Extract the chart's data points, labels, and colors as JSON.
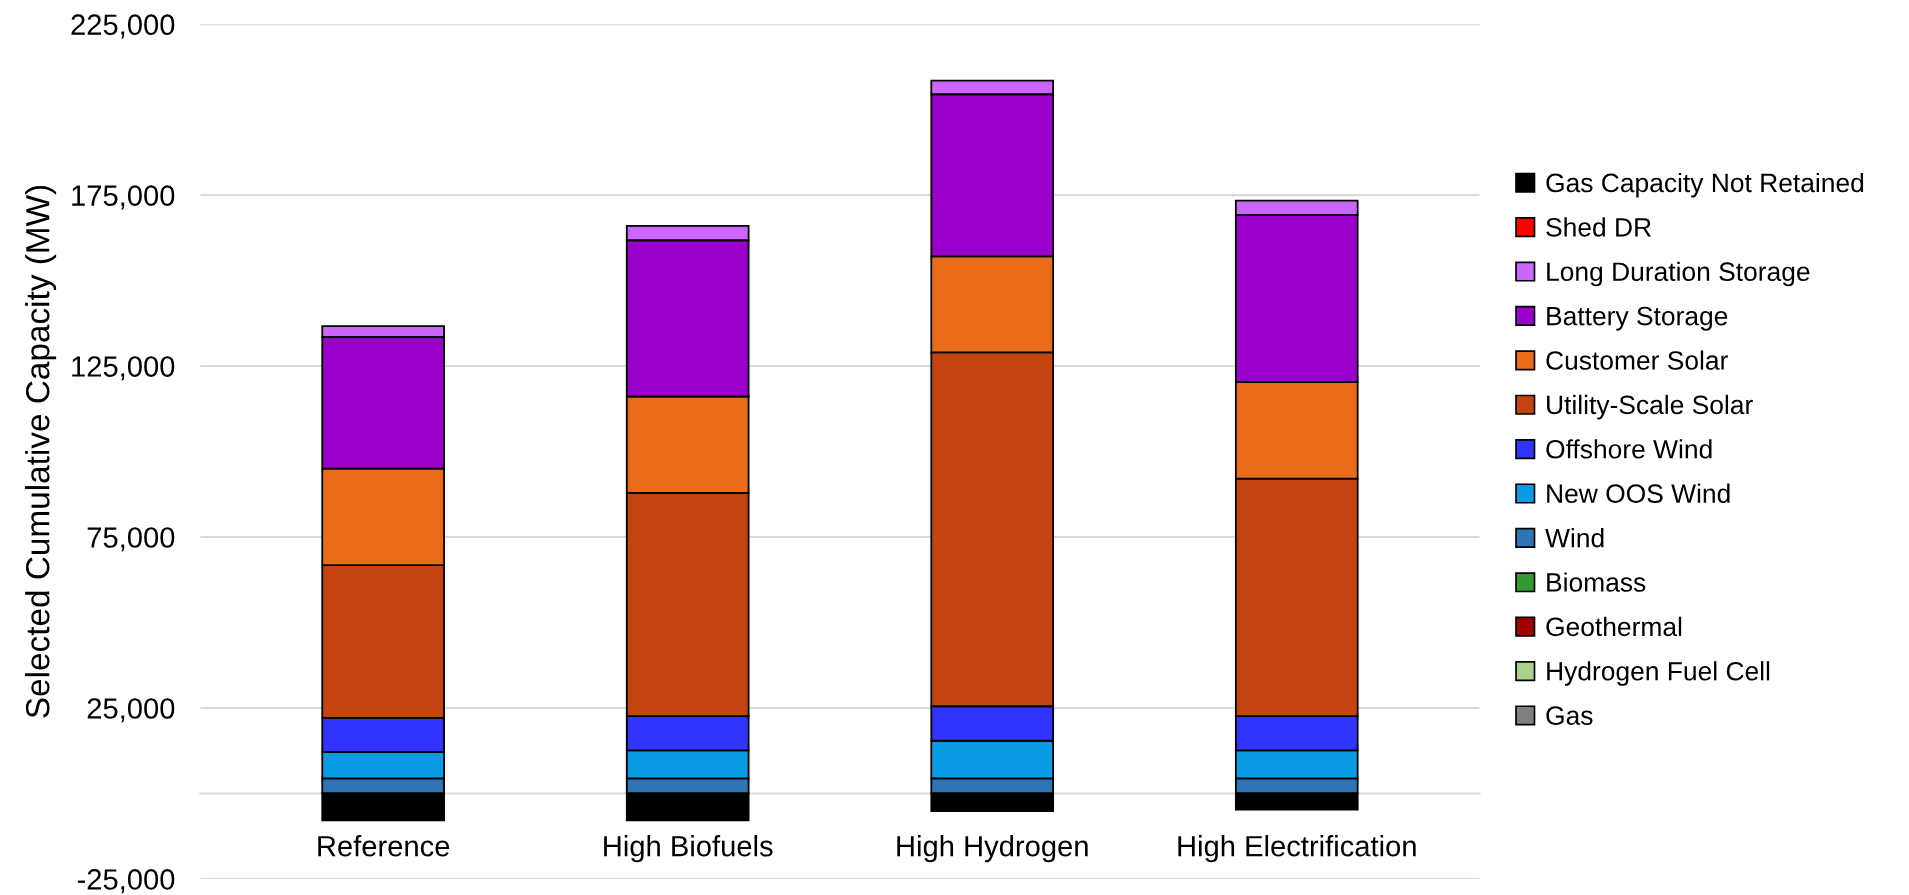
{
  "chart_data": {
    "type": "bar",
    "stacked": true,
    "ylabel": "Selected Cumulative Capacity (MW)",
    "categories": [
      "Reference",
      "High Biofuels",
      "High Hydrogen",
      "High Electrification"
    ],
    "ylim": [
      -25000,
      225000
    ],
    "yticks": [
      {
        "value": -25000,
        "label": "-25,000"
      },
      {
        "value": 25000,
        "label": "25,000"
      },
      {
        "value": 75000,
        "label": "75,000"
      },
      {
        "value": 125000,
        "label": "125,000"
      },
      {
        "value": 175000,
        "label": "175,000"
      },
      {
        "value": 225000,
        "label": "225,000"
      }
    ],
    "grid": "y",
    "legend": "right",
    "series": [
      {
        "name": "Gas",
        "color": "#808080",
        "values": [
          0,
          0,
          0,
          0
        ]
      },
      {
        "name": "Hydrogen Fuel Cell",
        "color": "#a9d18e",
        "values": [
          0,
          0,
          0,
          0
        ]
      },
      {
        "name": "Geothermal",
        "color": "#a00000",
        "values": [
          0,
          0,
          0,
          0
        ]
      },
      {
        "name": "Biomass",
        "color": "#339933",
        "values": [
          0,
          0,
          0,
          0
        ]
      },
      {
        "name": "Wind",
        "color": "#2e75b6",
        "values": [
          4400,
          4400,
          4400,
          4400
        ]
      },
      {
        "name": "New OOS Wind",
        "color": "#0a9be3",
        "values": [
          7700,
          8200,
          11000,
          8200
        ]
      },
      {
        "name": "Offshore Wind",
        "color": "#3333ff",
        "values": [
          10000,
          10000,
          10100,
          10000
        ]
      },
      {
        "name": "Utility-Scale Solar",
        "color": "#c44410",
        "values": [
          44700,
          65300,
          103500,
          69500
        ]
      },
      {
        "name": "Customer Solar",
        "color": "#eb6c18",
        "values": [
          28200,
          28200,
          28100,
          28200
        ]
      },
      {
        "name": "Battery Storage",
        "color": "#9900cc",
        "values": [
          38500,
          45700,
          47400,
          48900
        ]
      },
      {
        "name": "Long Duration Storage",
        "color": "#cc66ff",
        "values": [
          3200,
          4200,
          4000,
          4200
        ]
      },
      {
        "name": "Shed DR",
        "color": "#ff0000",
        "values": [
          0,
          0,
          0,
          0
        ]
      },
      {
        "name": "Gas Capacity Not Retained",
        "color": "#000000",
        "values": [
          -7900,
          -7900,
          -5200,
          -4700
        ]
      }
    ]
  }
}
